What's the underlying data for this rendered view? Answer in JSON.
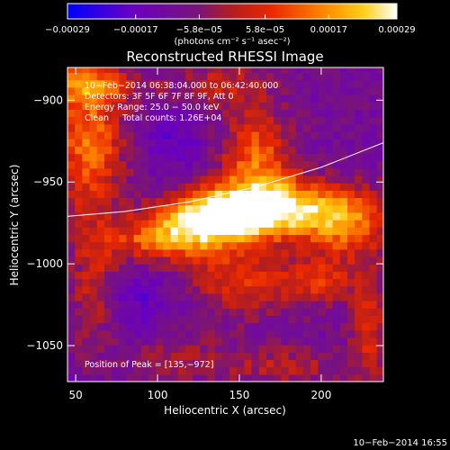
{
  "chart_data": {
    "type": "heatmap",
    "title": "Reconstructed RHESSI Image",
    "xlabel": "Heliocentric X (arcsec)",
    "ylabel": "Heliocentric Y (arcsec)",
    "xlim": [
      45,
      238
    ],
    "ylim": [
      -1072,
      -880
    ],
    "x_ticks": [
      50,
      100,
      150,
      200
    ],
    "y_ticks": [
      -900,
      -950,
      -1000,
      -1050
    ],
    "x_tick_labels": [
      "50",
      "100",
      "150",
      "200"
    ],
    "y_tick_labels": [
      "−900",
      "−950",
      "−1000",
      "−1050"
    ],
    "colorbar": {
      "range": [
        -0.00029,
        0.00029
      ],
      "tick_values": [
        -0.00029,
        -0.00017,
        -5.8e-05,
        5.8e-05,
        0.00017,
        0.00029
      ],
      "tick_labels": [
        "−0.00029",
        "−0.00017",
        "−5.8e−05",
        "5.8e−05",
        "0.00017",
        "0.00029"
      ],
      "unit_label": "(photons cm⁻² s⁻¹ asec⁻²)"
    },
    "annotations": [
      "10−Feb−2014 06:38:04.000 to 06:42:40.000",
      "Detectors: 3F 5F 6F 7F 8F 9F, Att 0",
      "Energy Range: 25.0 − 50.0 keV",
      "Clean     Total counts: 1.26E+04"
    ],
    "peak_label": "Position of Peak = [135,−972]",
    "peak": [
      135,
      -972
    ],
    "limb_curve": {
      "x": [
        45,
        80,
        120,
        160,
        200,
        238
      ],
      "y": [
        -971,
        -968,
        -962,
        -953,
        -941,
        -926
      ]
    },
    "intensity_model": {
      "background": -0.0001,
      "blobs": [
        {
          "x": 135,
          "y": -972,
          "sx": 22,
          "sy": 12,
          "a": 0.00042
        },
        {
          "x": 175,
          "y": -965,
          "sx": 25,
          "sy": 12,
          "a": 0.00033
        },
        {
          "x": 215,
          "y": -975,
          "sx": 18,
          "sy": 14,
          "a": 0.00024
        },
        {
          "x": 100,
          "y": -985,
          "sx": 20,
          "sy": 10,
          "a": 0.00022
        },
        {
          "x": 160,
          "y": -935,
          "sx": 15,
          "sy": 20,
          "a": 0.00022
        },
        {
          "x": 58,
          "y": -925,
          "sx": 15,
          "sy": 30,
          "a": 0.00024
        },
        {
          "x": 62,
          "y": -1015,
          "sx": 12,
          "sy": 25,
          "a": 0.00017
        },
        {
          "x": 55,
          "y": -890,
          "sx": 25,
          "sy": 8,
          "a": 0.00018
        },
        {
          "x": 150,
          "y": -1010,
          "sx": 25,
          "sy": 15,
          "a": 0.00015
        },
        {
          "x": 230,
          "y": -1040,
          "sx": 8,
          "sy": 25,
          "a": 0.00014
        },
        {
          "x": 200,
          "y": -1010,
          "sx": 15,
          "sy": 10,
          "a": 0.00015
        },
        {
          "x": 140,
          "y": -890,
          "sx": 20,
          "sy": 10,
          "a": 0.00012
        },
        {
          "x": 110,
          "y": -1055,
          "sx": 20,
          "sy": 10,
          "a": 8e-05
        },
        {
          "x": 175,
          "y": -1062,
          "sx": 30,
          "sy": 8,
          "a": 0.0001
        },
        {
          "x": 110,
          "y": -925,
          "sx": 15,
          "sy": 15,
          "a": -8e-05
        },
        {
          "x": 80,
          "y": -1020,
          "sx": 22,
          "sy": 18,
          "a": -0.0001
        }
      ]
    }
  },
  "footer": {
    "date": "10−Feb−2014 16:55"
  }
}
